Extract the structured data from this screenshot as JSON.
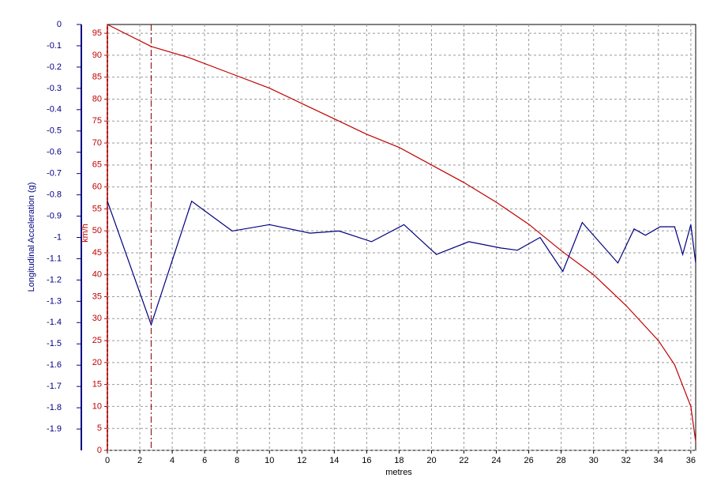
{
  "chart_data": {
    "type": "line",
    "x_label": "metres",
    "y_label": "km/h",
    "y2_label": "Longitudinal Acceleration (g)",
    "xlim": [
      0,
      36.3
    ],
    "xticks": [
      0,
      2,
      4,
      6,
      8,
      10,
      12,
      14,
      16,
      18,
      20,
      22,
      24,
      26,
      28,
      30,
      32,
      34,
      36
    ],
    "ylim": [
      0,
      97
    ],
    "yticks": [
      0,
      5,
      10,
      15,
      20,
      25,
      30,
      35,
      40,
      45,
      50,
      55,
      60,
      65,
      70,
      75,
      80,
      85,
      90,
      95
    ],
    "y2lim": [
      -2,
      0
    ],
    "y2ticks": [
      0,
      -0.1,
      -0.2,
      -0.3,
      -0.4,
      -0.5,
      -0.6,
      -0.7,
      -0.8,
      -0.9,
      -1,
      -1.1,
      -1.2,
      -1.3,
      -1.4,
      -1.5,
      -1.6,
      -1.7,
      -1.8,
      -1.9
    ],
    "grid": true,
    "cursor_x": 2.7,
    "series": [
      {
        "color": "#c00000",
        "axis": "y",
        "x": [
          0,
          2.7,
          5,
          7.5,
          10,
          12,
          14,
          16,
          18,
          20,
          22,
          24,
          26,
          28,
          30,
          32,
          34,
          35,
          36,
          36.3
        ],
        "values": [
          97,
          92,
          89.5,
          86,
          82.5,
          79,
          75.5,
          72,
          69,
          65,
          61,
          56.5,
          51.5,
          45.5,
          40,
          33,
          25,
          19.5,
          10,
          2
        ]
      },
      {
        "color": "#000080",
        "axis": "y2",
        "x": [
          0,
          2.7,
          5.2,
          7.7,
          10,
          12.5,
          14.3,
          16.3,
          18.3,
          20.3,
          22.3,
          24.3,
          25.3,
          26.7,
          28.1,
          29.3,
          31.5,
          32.5,
          33.2,
          34.1,
          35,
          35.5,
          36,
          36.3
        ],
        "values": [
          -0.83,
          -1.41,
          -0.83,
          -0.97,
          -0.94,
          -0.98,
          -0.97,
          -1.02,
          -0.94,
          -1.08,
          -1.02,
          -1.05,
          -1.06,
          -1,
          -1.16,
          -0.93,
          -1.12,
          -0.96,
          -0.99,
          -0.95,
          -0.95,
          -1.08,
          -0.94,
          -1.12
        ]
      }
    ]
  }
}
